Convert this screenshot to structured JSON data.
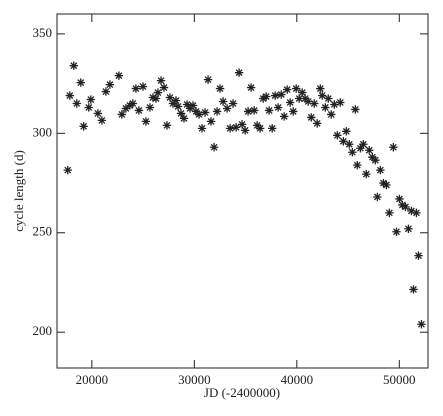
{
  "chart_data": {
    "type": "scatter",
    "x_label": "JD (-2400000)",
    "y_label": "cycle length (d)",
    "xlim": [
      16600,
      52800
    ],
    "ylim": [
      182,
      360
    ],
    "xticks": [
      20000,
      30000,
      40000,
      50000
    ],
    "yticks": [
      200,
      250,
      300,
      350
    ],
    "grid": false,
    "color": "#222222",
    "x": [
      17650,
      17850,
      18240,
      18530,
      18920,
      19200,
      19700,
      19900,
      20590,
      20980,
      21370,
      21760,
      22640,
      22930,
      23320,
      23710,
      24000,
      24300,
      24590,
      24990,
      25280,
      25670,
      25960,
      26260,
      26450,
      26750,
      27040,
      27330,
      27620,
      27920,
      28210,
      28410,
      28700,
      28990,
      29290,
      29580,
      29870,
      30170,
      30460,
      30750,
      31050,
      31340,
      31630,
      31930,
      32220,
      32510,
      32810,
      33200,
      33490,
      33780,
      34080,
      34370,
      34660,
      34960,
      35250,
      35540,
      35840,
      36130,
      36420,
      36720,
      37010,
      37300,
      37600,
      37890,
      38180,
      38480,
      38770,
      39060,
      39350,
      39650,
      39940,
      40230,
      40530,
      40820,
      41110,
      41410,
      41700,
      41990,
      42290,
      42480,
      42780,
      43070,
      43360,
      43660,
      43950,
      44240,
      44540,
      44830,
      45120,
      45420,
      45710,
      45900,
      46200,
      46490,
      46780,
      47070,
      47370,
      47660,
      47860,
      48150,
      48450,
      48740,
      49030,
      49420,
      49720,
      50010,
      50300,
      50600,
      50890,
      51180,
      51380,
      51670,
      51870,
      52160
    ],
    "values": [
      281.5,
      319,
      334,
      315,
      325.5,
      303.5,
      313,
      317,
      310,
      306.5,
      321,
      324.5,
      329,
      309.5,
      312.5,
      314,
      315,
      322.5,
      311.5,
      323.5,
      306,
      313,
      318,
      317.5,
      320.5,
      326.5,
      323,
      304,
      318,
      315,
      316.5,
      313.5,
      310,
      307.5,
      314.5,
      312.5,
      314,
      311,
      309.5,
      302.5,
      310.5,
      327,
      306,
      293,
      311,
      322.5,
      316,
      312.5,
      302.5,
      315,
      303,
      330.5,
      304.5,
      301.5,
      311,
      323,
      311.5,
      304,
      302.5,
      317.5,
      318.5,
      311.5,
      302.5,
      319,
      313,
      319.5,
      308.5,
      322,
      315.5,
      311,
      322.5,
      317.5,
      320.5,
      317.5,
      316,
      308,
      315,
      305,
      322.5,
      319,
      313,
      317.5,
      309.5,
      314.5,
      299,
      315.5,
      296,
      301,
      294.5,
      290.5,
      312,
      284,
      292.5,
      294.5,
      279.5,
      291.5,
      288,
      286.5,
      268,
      281.5,
      275,
      274,
      260,
      293,
      250.5,
      267,
      264,
      263,
      252,
      261,
      221.5,
      260,
      238.5,
      204
    ]
  }
}
